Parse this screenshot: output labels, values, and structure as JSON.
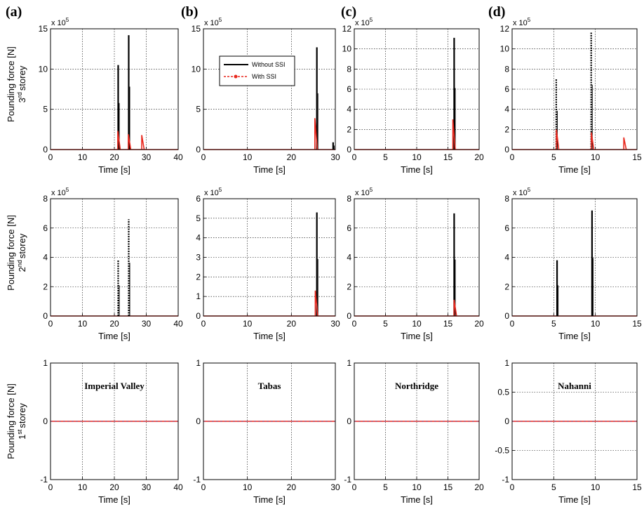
{
  "panel_labels": [
    "(a)",
    "(b)",
    "(c)",
    "(d)"
  ],
  "row_labels": [
    {
      "main": "Pounding force [N]",
      "storey_num": "3",
      "storey_sup": "rd",
      "storey_word": "storey"
    },
    {
      "main": "Pounding force [N]",
      "storey_num": "2",
      "storey_sup": "nd",
      "storey_word": "storey"
    },
    {
      "main": "Pounding force [N]",
      "storey_num": "1",
      "storey_sup": "st",
      "storey_word": "storey"
    }
  ],
  "legend": {
    "without": "Without SSI",
    "with": "With SSI"
  },
  "colors": {
    "without": "#000000",
    "with": "#e8271d",
    "grid": "#000000"
  },
  "chart_data": [
    {
      "type": "line",
      "panel": "(a)",
      "row": 1,
      "xlabel": "Time [s]",
      "exponent": "x 10^5",
      "xlim": [
        0,
        40
      ],
      "ylim": [
        0,
        15
      ],
      "xticks": [
        0,
        10,
        20,
        30,
        40
      ],
      "yticks": [
        0,
        5,
        10,
        15
      ],
      "series": [
        {
          "name": "Without SSI",
          "spikes": [
            {
              "x": 21.2,
              "y": 10.5
            },
            {
              "x": 24.5,
              "y": 14.2
            }
          ]
        },
        {
          "name": "With SSI",
          "spikes": [
            {
              "x": 21.3,
              "y": 2.3
            },
            {
              "x": 24.6,
              "y": 1.9
            },
            {
              "x": 28.8,
              "y": 1.8
            }
          ]
        }
      ]
    },
    {
      "type": "line",
      "panel": "(b)",
      "row": 1,
      "xlabel": "Time [s]",
      "exponent": "x 10^5",
      "xlim": [
        0,
        30
      ],
      "ylim": [
        0,
        15
      ],
      "xticks": [
        0,
        10,
        20,
        30
      ],
      "yticks": [
        0,
        5,
        10,
        15
      ],
      "series": [
        {
          "name": "Without SSI",
          "spikes": [
            {
              "x": 25.8,
              "y": 12.7
            },
            {
              "x": 29.5,
              "y": 0.9
            }
          ]
        },
        {
          "name": "With SSI",
          "spikes": [
            {
              "x": 25.5,
              "y": 3.9
            }
          ]
        }
      ]
    },
    {
      "type": "line",
      "panel": "(c)",
      "row": 1,
      "xlabel": "Time [s]",
      "exponent": "x 10^5",
      "xlim": [
        0,
        20
      ],
      "ylim": [
        0,
        12
      ],
      "xticks": [
        0,
        5,
        10,
        15,
        20
      ],
      "yticks": [
        0,
        2,
        4,
        6,
        8,
        10,
        12
      ],
      "series": [
        {
          "name": "Without SSI",
          "spikes": [
            {
              "x": 16.0,
              "y": 11.1
            }
          ]
        },
        {
          "name": "With SSI",
          "spikes": [
            {
              "x": 15.9,
              "y": 3.0
            }
          ]
        }
      ]
    },
    {
      "type": "line",
      "panel": "(d)",
      "row": 1,
      "xlabel": "Time [s]",
      "exponent": "x 10^5",
      "xlim": [
        0,
        15
      ],
      "ylim": [
        0,
        12
      ],
      "xticks": [
        0,
        5,
        10,
        15
      ],
      "yticks": [
        0,
        2,
        4,
        6,
        8,
        10,
        12
      ],
      "series": [
        {
          "name": "Without SSI",
          "spikes": [
            {
              "x": 5.3,
              "y": 7.0
            },
            {
              "x": 9.5,
              "y": 11.7
            }
          ]
        },
        {
          "name": "With SSI",
          "spikes": [
            {
              "x": 5.4,
              "y": 2.0
            },
            {
              "x": 9.6,
              "y": 1.7
            },
            {
              "x": 13.5,
              "y": 1.2
            }
          ]
        }
      ]
    },
    {
      "type": "line",
      "panel": "(a)",
      "row": 2,
      "xlabel": "Time [s]",
      "exponent": "x 10^5",
      "xlim": [
        0,
        40
      ],
      "ylim": [
        0,
        8
      ],
      "xticks": [
        0,
        10,
        20,
        30,
        40
      ],
      "yticks": [
        0,
        2,
        4,
        6,
        8
      ],
      "series": [
        {
          "name": "Without SSI",
          "spikes": [
            {
              "x": 21.2,
              "y": 3.8
            },
            {
              "x": 24.5,
              "y": 6.6
            }
          ]
        },
        {
          "name": "With SSI",
          "spikes": []
        }
      ]
    },
    {
      "type": "line",
      "panel": "(b)",
      "row": 2,
      "xlabel": "Time [s]",
      "exponent": "x 10^5",
      "xlim": [
        0,
        30
      ],
      "ylim": [
        0,
        6
      ],
      "xticks": [
        0,
        10,
        20,
        30
      ],
      "yticks": [
        0,
        1,
        2,
        3,
        4,
        5,
        6
      ],
      "series": [
        {
          "name": "Without SSI",
          "spikes": [
            {
              "x": 25.8,
              "y": 5.3
            }
          ]
        },
        {
          "name": "With SSI",
          "spikes": [
            {
              "x": 25.6,
              "y": 1.3
            }
          ]
        }
      ]
    },
    {
      "type": "line",
      "panel": "(c)",
      "row": 2,
      "xlabel": "Time [s]",
      "exponent": "x 10^5",
      "xlim": [
        0,
        20
      ],
      "ylim": [
        0,
        8
      ],
      "xticks": [
        0,
        5,
        10,
        15,
        20
      ],
      "yticks": [
        0,
        2,
        4,
        6,
        8
      ],
      "series": [
        {
          "name": "Without SSI",
          "spikes": [
            {
              "x": 16.0,
              "y": 7.0
            }
          ]
        },
        {
          "name": "With SSI",
          "spikes": [
            {
              "x": 16.1,
              "y": 1.1
            }
          ]
        }
      ]
    },
    {
      "type": "line",
      "panel": "(d)",
      "row": 2,
      "xlabel": "Time [s]",
      "exponent": "x 10^5",
      "xlim": [
        0,
        15
      ],
      "ylim": [
        0,
        8
      ],
      "xticks": [
        0,
        5,
        10,
        15
      ],
      "yticks": [
        0,
        2,
        4,
        6,
        8
      ],
      "series": [
        {
          "name": "Without SSI",
          "spikes": [
            {
              "x": 5.4,
              "y": 3.8
            },
            {
              "x": 9.6,
              "y": 7.2
            }
          ]
        },
        {
          "name": "With SSI",
          "spikes": []
        }
      ]
    },
    {
      "type": "line",
      "panel": "(a)",
      "row": 3,
      "xlabel": "Time [s]",
      "annotation": "Imperial Valley",
      "xlim": [
        0,
        40
      ],
      "ylim": [
        -1,
        1
      ],
      "xticks": [
        0,
        10,
        20,
        30,
        40
      ],
      "yticks": [
        -1,
        0,
        1
      ],
      "series": [
        {
          "name": "Without SSI",
          "spikes": []
        },
        {
          "name": "With SSI",
          "spikes": []
        }
      ]
    },
    {
      "type": "line",
      "panel": "(b)",
      "row": 3,
      "xlabel": "Time [s]",
      "annotation": "Tabas",
      "xlim": [
        0,
        30
      ],
      "ylim": [
        -1,
        1
      ],
      "xticks": [
        0,
        10,
        20,
        30
      ],
      "yticks": [
        -1,
        0,
        1
      ],
      "series": [
        {
          "name": "Without SSI",
          "spikes": []
        },
        {
          "name": "With SSI",
          "spikes": []
        }
      ]
    },
    {
      "type": "line",
      "panel": "(c)",
      "row": 3,
      "xlabel": "Time [s]",
      "annotation": "Northridge",
      "xlim": [
        0,
        20
      ],
      "ylim": [
        -1,
        1
      ],
      "xticks": [
        0,
        5,
        10,
        15,
        20
      ],
      "yticks": [
        -1,
        0,
        1
      ],
      "series": [
        {
          "name": "Without SSI",
          "spikes": []
        },
        {
          "name": "With SSI",
          "spikes": []
        }
      ]
    },
    {
      "type": "line",
      "panel": "(d)",
      "row": 3,
      "xlabel": "Time [s]",
      "annotation": "Nahanni",
      "xlim": [
        0,
        15
      ],
      "ylim": [
        -1,
        1
      ],
      "xticks": [
        0,
        5,
        10,
        15
      ],
      "yticks": [
        -1,
        -0.5,
        0,
        0.5,
        1
      ],
      "series": [
        {
          "name": "Without SSI",
          "spikes": []
        },
        {
          "name": "With SSI",
          "spikes": []
        }
      ]
    }
  ]
}
